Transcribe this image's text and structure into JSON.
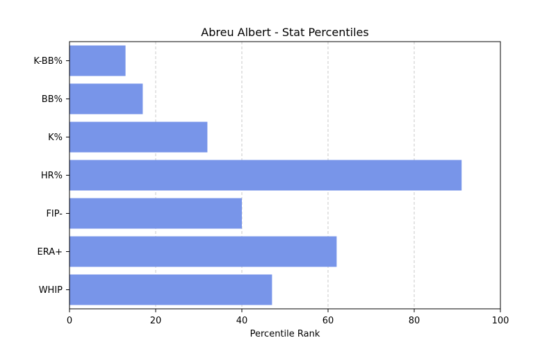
{
  "chart_data": {
    "type": "bar",
    "orientation": "horizontal",
    "title": "Abreu Albert - Stat Percentiles",
    "xlabel": "Percentile Rank",
    "ylabel": "",
    "xlim": [
      0,
      100
    ],
    "xticks": [
      0,
      20,
      40,
      60,
      80,
      100
    ],
    "grid": "x-dashed",
    "bar_color": "#7895e9",
    "categories": [
      "K-BB%",
      "BB%",
      "K%",
      "HR%",
      "FIP-",
      "ERA+",
      "WHIP"
    ],
    "values": [
      13,
      17,
      32,
      91,
      40,
      62,
      47
    ]
  }
}
